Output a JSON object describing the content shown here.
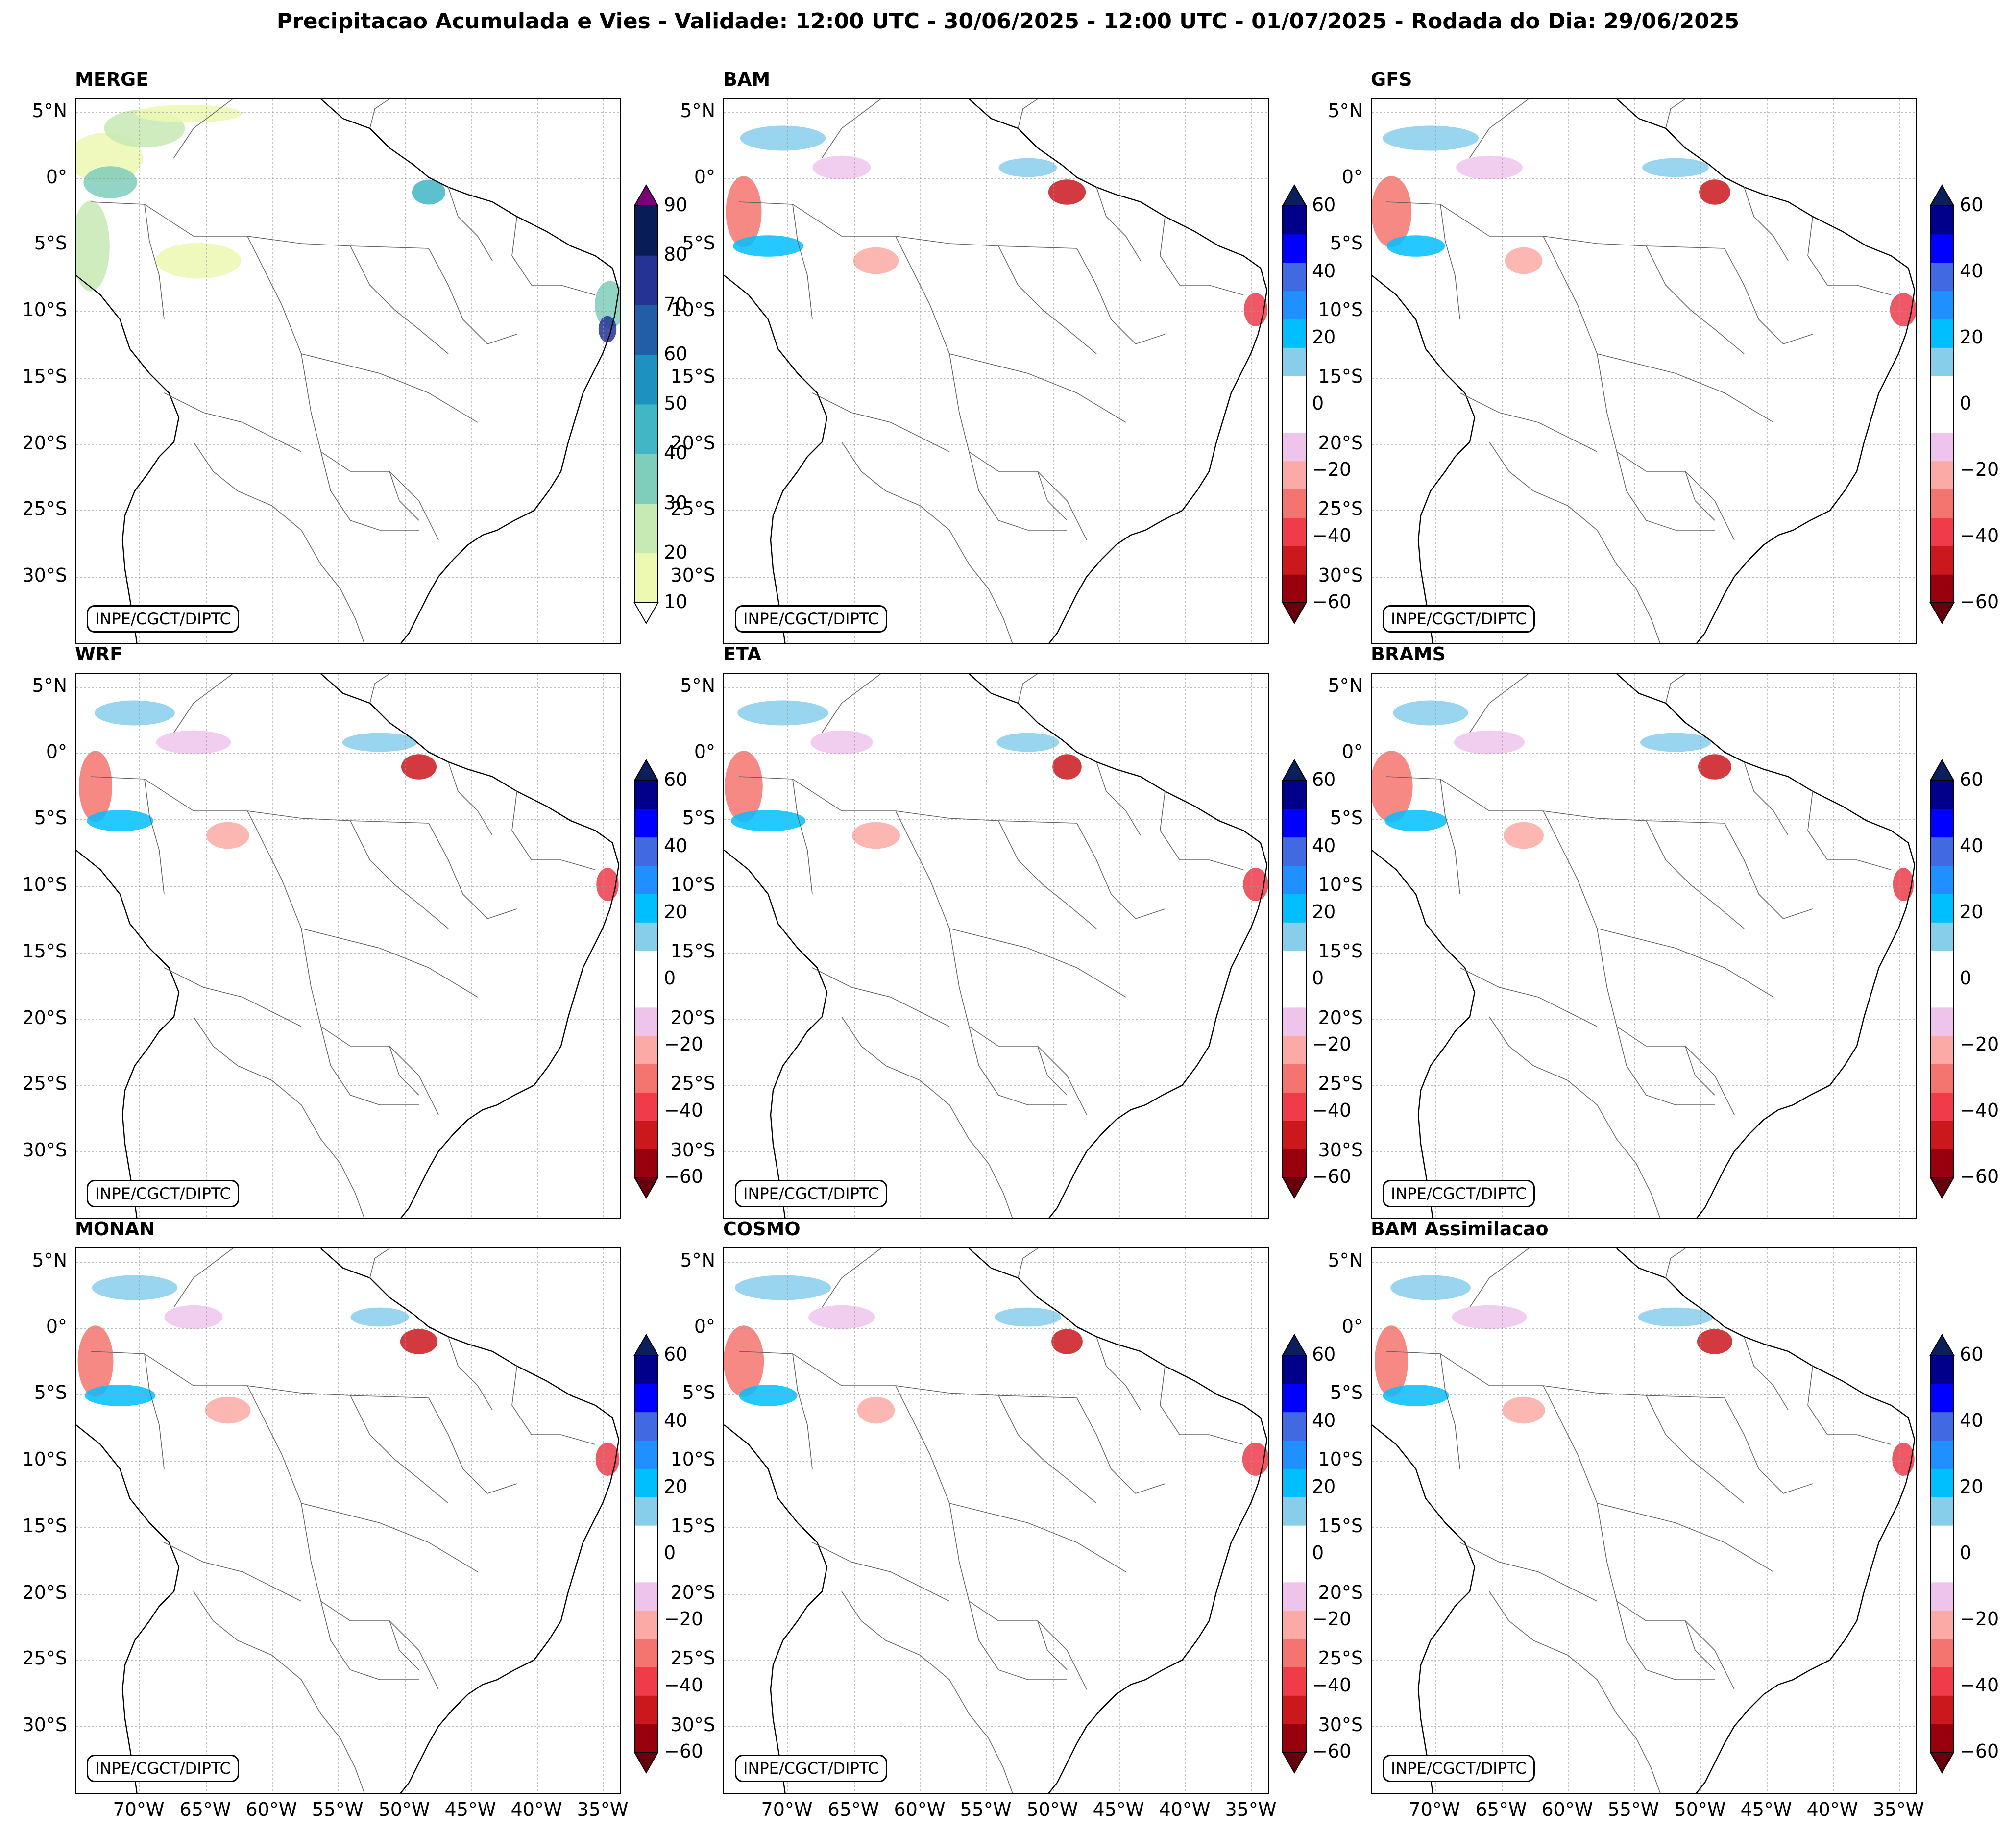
{
  "figure": {
    "title": "Precipitacao Acumulada e Vies - Validade: 12:00 UTC - 30/06/2025 - 12:00 UTC - 01/07/2025 - Rodada do Dia: 29/06/2025",
    "credit": "INPE/CGCT/DIPTC"
  },
  "axes": {
    "lat_labels": [
      "5°N",
      "0°",
      "5°S",
      "10°S",
      "15°S",
      "20°S",
      "25°S",
      "30°S"
    ],
    "lon_labels": [
      "70°W",
      "65°W",
      "60°W",
      "55°W",
      "50°W",
      "45°W",
      "40°W",
      "35°W"
    ]
  },
  "colorbars": {
    "merge": {
      "ticks": [
        "90",
        "80",
        "70",
        "60",
        "50",
        "40",
        "30",
        "20",
        "10"
      ],
      "colors": [
        "#edf8b1",
        "#c7e9b4",
        "#7fcdbb",
        "#41b6c4",
        "#1d91c0",
        "#225ea8",
        "#253494",
        "#081d58"
      ],
      "extend_top": "#7a0177",
      "extend_bottom": "#ffffff"
    },
    "bias": {
      "ticks": [
        "60",
        "40",
        "20",
        "0",
        "−20",
        "−40",
        "−60"
      ],
      "colors": [
        "#99000d",
        "#cb181d",
        "#ef3b4a",
        "#f4746f",
        "#fbaaa6",
        "#efc4ec",
        "#ffffff",
        "#ffffff",
        "#87ceeb",
        "#00bfff",
        "#1e90ff",
        "#4169e1",
        "#0000ff",
        "#00008b"
      ],
      "extend_top": "#0a1f5c",
      "extend_bottom": "#67000d"
    }
  },
  "panels": [
    {
      "title": "MERGE",
      "kind": "merge"
    },
    {
      "title": "BAM",
      "kind": "bias"
    },
    {
      "title": "GFS",
      "kind": "bias"
    },
    {
      "title": "WRF",
      "kind": "bias"
    },
    {
      "title": "ETA",
      "kind": "bias"
    },
    {
      "title": "BRAMS",
      "kind": "bias"
    },
    {
      "title": "MONAN",
      "kind": "bias"
    },
    {
      "title": "COSMO",
      "kind": "bias"
    },
    {
      "title": "BAM Assimilacao",
      "kind": "bias"
    }
  ]
}
